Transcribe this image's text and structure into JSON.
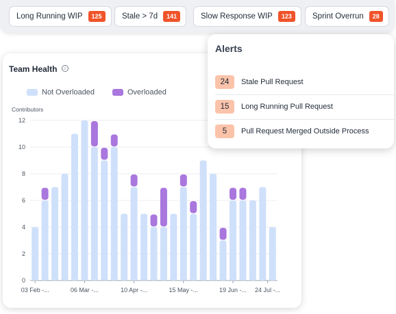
{
  "top_chips": [
    {
      "label": "Long Running WIP",
      "count": "125"
    },
    {
      "label": "Stale > 7d",
      "count": "141"
    },
    {
      "label": "Slow Response WIP",
      "count": "123"
    },
    {
      "label": "Sprint Overrun",
      "count": "28"
    }
  ],
  "team_health": {
    "title": "Team Health",
    "info_icon": "info-icon",
    "legend": {
      "not_overloaded": "Not Overloaded",
      "overloaded": "Overloaded"
    }
  },
  "alerts": {
    "title": "Alerts",
    "items": [
      {
        "count": "24",
        "label": "Stale Pull Request"
      },
      {
        "count": "15",
        "label": "Long Running Pull Request"
      },
      {
        "count": "5",
        "label": "Pull Request Merged Outside Process"
      }
    ]
  },
  "colors": {
    "not_overloaded": "#cfe0fb",
    "overloaded": "#a977dd",
    "badge": "#f0542a",
    "alert_badge": "#fbc3aa"
  },
  "chart_data": {
    "type": "bar",
    "ylabel": "Contributors",
    "ylim": [
      0,
      12
    ],
    "yticks": [
      0,
      2,
      4,
      6,
      8,
      10,
      12
    ],
    "xtick_labels": [
      "03 Feb -...",
      "06 Mar -...",
      "10 Apr -...",
      "15 May -...",
      "19 Jun -...",
      "24 Jul -..."
    ],
    "series": [
      {
        "name": "Not Overloaded",
        "values": [
          4,
          6,
          7,
          8,
          11,
          12,
          10,
          9,
          10,
          5,
          7,
          5,
          4,
          4,
          5,
          7,
          5,
          9,
          8,
          3,
          6,
          6,
          6,
          7,
          4
        ]
      },
      {
        "name": "Overloaded",
        "values": [
          0,
          1,
          0,
          0,
          0,
          0,
          2,
          1,
          1,
          0,
          1,
          0,
          1,
          3,
          0,
          1,
          1,
          0,
          0,
          1,
          1,
          1,
          0,
          0,
          0
        ]
      }
    ]
  }
}
